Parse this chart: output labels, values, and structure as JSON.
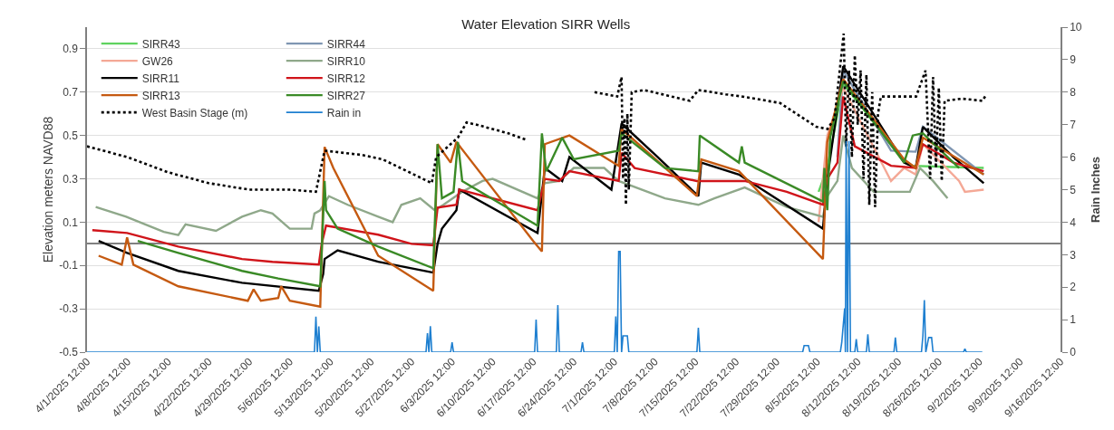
{
  "chart_data": {
    "type": "line",
    "title": "Water Elevation SIRR Wells",
    "ylabel": "Elevation meters NAVD88",
    "y2label": "Rain Inches",
    "xlim": [
      "2025-04-01T12:00",
      "2025-09-16T12:00"
    ],
    "xticks": [
      {
        "value": "2025-04-01T12:00",
        "label": "4/1/2025 12:00"
      },
      {
        "value": "2025-04-08T12:00",
        "label": "4/8/2025 12:00"
      },
      {
        "value": "2025-04-15T12:00",
        "label": "4/15/2025 12:00"
      },
      {
        "value": "2025-04-22T12:00",
        "label": "4/22/2025 12:00"
      },
      {
        "value": "2025-04-29T12:00",
        "label": "4/29/2025 12:00"
      },
      {
        "value": "2025-05-06T12:00",
        "label": "5/6/2025 12:00"
      },
      {
        "value": "2025-05-13T12:00",
        "label": "5/13/2025 12:00"
      },
      {
        "value": "2025-05-20T12:00",
        "label": "5/20/2025 12:00"
      },
      {
        "value": "2025-05-27T12:00",
        "label": "5/27/2025 12:00"
      },
      {
        "value": "2025-06-03T12:00",
        "label": "6/3/2025 12:00"
      },
      {
        "value": "2025-06-10T12:00",
        "label": "6/10/2025 12:00"
      },
      {
        "value": "2025-06-17T12:00",
        "label": "6/17/2025 12:00"
      },
      {
        "value": "2025-06-24T12:00",
        "label": "6/24/2025 12:00"
      },
      {
        "value": "2025-07-01T12:00",
        "label": "7/1/2025 12:00"
      },
      {
        "value": "2025-07-08T12:00",
        "label": "7/8/2025 12:00"
      },
      {
        "value": "2025-07-15T12:00",
        "label": "7/15/2025 12:00"
      },
      {
        "value": "2025-07-22T12:00",
        "label": "7/22/2025 12:00"
      },
      {
        "value": "2025-07-29T12:00",
        "label": "7/29/2025 12:00"
      },
      {
        "value": "2025-08-05T12:00",
        "label": "8/5/2025 12:00"
      },
      {
        "value": "2025-08-12T12:00",
        "label": "8/12/2025 12:00"
      },
      {
        "value": "2025-08-19T12:00",
        "label": "8/19/2025 12:00"
      },
      {
        "value": "2025-08-26T12:00",
        "label": "8/26/2025 12:00"
      },
      {
        "value": "2025-09-02T12:00",
        "label": "9/2/2025 12:00"
      },
      {
        "value": "2025-09-09T12:00",
        "label": "9/9/2025 12:00"
      },
      {
        "value": "2025-09-16T12:00",
        "label": "9/16/2025 12:00"
      }
    ],
    "ylim": [
      -0.5,
      1.0
    ],
    "yticks": [
      -0.5,
      -0.3,
      -0.1,
      0.1,
      0.3,
      0.5,
      0.7,
      0.9
    ],
    "y2lim": [
      0,
      10
    ],
    "y2ticks": [
      0,
      1,
      2,
      3,
      4,
      5,
      6,
      7,
      8,
      9,
      10
    ],
    "grid": "y",
    "legend": "top left",
    "series": [
      {
        "name": "SIRR43",
        "color": "#5fd35f",
        "x": [
          "2025-08-05T18:00",
          "2025-08-07T06:00",
          "2025-08-10T00:00",
          "2025-08-20T12:00",
          "2025-08-22T00:00",
          "2025-09-03T06:00"
        ],
        "values": [
          0.24,
          0.35,
          0.74,
          0.38,
          0.36,
          0.35
        ]
      },
      {
        "name": "SIRR44",
        "color": "#7f96b2",
        "x": [
          "2025-08-09T00:00",
          "2025-08-10T00:00",
          "2025-08-18T06:00",
          "2025-08-22T12:00",
          "2025-08-23T18:00",
          "2025-09-03T06:00"
        ],
        "values": [
          0.4,
          0.8,
          0.43,
          0.425,
          0.54,
          0.32
        ]
      },
      {
        "name": "GW26",
        "color": "#f4a896",
        "x": [
          "2025-08-05T18:00",
          "2025-08-07T06:00",
          "2025-08-10T00:00",
          "2025-08-18T06:00",
          "2025-08-20T12:00",
          "2025-08-22T12:00",
          "2025-08-23T18:00",
          "2025-08-30T00:00",
          "2025-08-31T00:00",
          "2025-09-03T06:00"
        ],
        "values": [
          0.1,
          0.5,
          0.72,
          0.29,
          0.35,
          0.32,
          0.46,
          0.29,
          0.24,
          0.25
        ]
      },
      {
        "name": "SIRR10",
        "color": "#8fa88a",
        "x": [
          "2025-04-03T00:00",
          "2025-04-08T06:00",
          "2025-04-14T18:00",
          "2025-04-17T06:00",
          "2025-04-18T12:00",
          "2025-04-23T18:00",
          "2025-04-28T06:00",
          "2025-05-01T12:00",
          "2025-05-03T12:00",
          "2025-05-06T12:00",
          "2025-05-10T06:00",
          "2025-05-10T18:00",
          "2025-05-11T18:00",
          "2025-05-13T06:00",
          "2025-05-16T12:00",
          "2025-05-21T18:00",
          "2025-05-24T06:00",
          "2025-05-25T18:00",
          "2025-05-29T00:00",
          "2025-05-31T12:00",
          "2025-06-02T00:00",
          "2025-06-05T06:00",
          "2025-06-08T18:00",
          "2025-06-10T12:00",
          "2025-06-18T06:00",
          "2025-06-19T12:00",
          "2025-06-22T00:00",
          "2025-06-24T12:00",
          "2025-06-29T18:00",
          "2025-07-02T06:00",
          "2025-07-10T06:00",
          "2025-07-16T00:00",
          "2025-07-18T18:00",
          "2025-07-24T00:00",
          "2025-07-31T06:00",
          "2025-08-06T12:00",
          "2025-08-07T06:00",
          "2025-08-09T00:00",
          "2025-08-10T00:00",
          "2025-08-11T12:00",
          "2025-08-15T06:00",
          "2025-08-21T12:00",
          "2025-08-23T06:00",
          "2025-08-25T12:00",
          "2025-08-28T00:00"
        ],
        "values": [
          0.17,
          0.125,
          0.055,
          0.04,
          0.09,
          0.06,
          0.125,
          0.155,
          0.14,
          0.07,
          0.07,
          0.14,
          0.155,
          0.22,
          0.18,
          0.125,
          0.1,
          0.18,
          0.21,
          0.155,
          0.18,
          0.24,
          0.29,
          0.3,
          0.21,
          0.28,
          0.29,
          0.35,
          0.35,
          0.29,
          0.21,
          0.18,
          0.21,
          0.26,
          0.17,
          0.125,
          0.22,
          0.29,
          0.5,
          0.35,
          0.24,
          0.24,
          0.35,
          0.29,
          0.21
        ]
      },
      {
        "name": "SIRR11",
        "color": "#000000",
        "x": [
          "2025-04-03T12:00",
          "2025-04-08T10:00",
          "2025-04-17T06:00",
          "2025-04-28T06:00",
          "2025-05-11T12:00",
          "2025-05-12T06:00",
          "2025-05-12T12:00",
          "2025-05-14T18:00",
          "2025-05-21T18:00",
          "2025-05-31T06:00",
          "2025-06-01T00:00",
          "2025-06-01T18:00",
          "2025-06-04T06:00",
          "2025-06-04T18:00",
          "2025-06-18T06:00",
          "2025-06-19T12:00",
          "2025-06-22T12:00",
          "2025-06-23T18:00",
          "2025-07-01T00:00",
          "2025-07-02T18:00",
          "2025-07-09T00:00",
          "2025-07-16T00:00",
          "2025-07-16T12:00",
          "2025-07-23T00:00",
          "2025-08-06T12:00",
          "2025-08-07T06:00",
          "2025-08-10T00:00",
          "2025-08-20T12:00",
          "2025-08-22T12:00",
          "2025-08-23T18:00",
          "2025-08-29T00:00",
          "2025-09-03T06:00"
        ],
        "values": [
          0.013,
          -0.042,
          -0.125,
          -0.18,
          -0.217,
          -0.14,
          -0.07,
          -0.03,
          -0.083,
          -0.133,
          0.0,
          0.07,
          0.155,
          0.25,
          0.05,
          0.35,
          0.29,
          0.4,
          0.25,
          0.555,
          0.4,
          0.22,
          0.375,
          0.32,
          0.07,
          0.3,
          0.82,
          0.375,
          0.35,
          0.54,
          0.4,
          0.28
        ]
      },
      {
        "name": "SIRR12",
        "color": "#d0141a",
        "x": [
          "2025-04-02T10:00",
          "2025-04-08T10:00",
          "2025-04-17T06:00",
          "2025-04-28T06:00",
          "2025-05-03T12:00",
          "2025-05-11T12:00",
          "2025-05-12T00:00",
          "2025-05-12T18:00",
          "2025-05-21T18:00",
          "2025-05-27T12:00",
          "2025-05-31T06:00",
          "2025-06-01T00:00",
          "2025-06-04T06:00",
          "2025-06-04T18:00",
          "2025-06-18T06:00",
          "2025-06-19T12:00",
          "2025-06-22T00:00",
          "2025-06-23T18:00",
          "2025-07-02T06:00",
          "2025-07-02T18:00",
          "2025-07-05T00:00",
          "2025-07-15T18:00",
          "2025-07-24T00:00",
          "2025-07-31T06:00",
          "2025-08-06T12:00",
          "2025-08-07T06:00",
          "2025-08-09T00:00",
          "2025-08-10T00:00",
          "2025-08-12T00:00",
          "2025-08-18T06:00",
          "2025-08-22T12:00",
          "2025-08-23T18:00",
          "2025-08-29T00:00",
          "2025-09-03T06:00"
        ],
        "values": [
          0.063,
          0.05,
          -0.013,
          -0.07,
          -0.083,
          -0.096,
          0.0,
          0.084,
          0.042,
          0.0,
          -0.007,
          0.167,
          0.18,
          0.25,
          0.155,
          0.3,
          0.29,
          0.335,
          0.29,
          0.42,
          0.35,
          0.29,
          0.29,
          0.24,
          0.18,
          0.3,
          0.375,
          0.68,
          0.45,
          0.36,
          0.35,
          0.46,
          0.375,
          0.335
        ]
      },
      {
        "name": "SIRR13",
        "color": "#c55a11",
        "x": [
          "2025-04-03T12:00",
          "2025-04-07T12:00",
          "2025-04-08T10:00",
          "2025-04-09T12:00",
          "2025-04-17T06:00",
          "2025-04-29T06:00",
          "2025-04-30T06:00",
          "2025-05-01T12:00",
          "2025-05-04T12:00",
          "2025-05-05T00:00",
          "2025-05-06T12:00",
          "2025-05-11T18:00",
          "2025-05-12T12:00",
          "2025-05-14T00:00",
          "2025-05-21T18:00",
          "2025-05-31T06:00",
          "2025-06-01T00:00",
          "2025-06-03T06:00",
          "2025-06-04T06:00",
          "2025-06-17T12:00",
          "2025-06-19T00:00",
          "2025-06-19T12:00",
          "2025-06-23T18:00",
          "2025-07-02T06:00",
          "2025-07-02T18:00",
          "2025-07-15T18:00",
          "2025-07-16T12:00",
          "2025-07-23T00:00",
          "2025-08-06T12:00",
          "2025-08-07T06:00",
          "2025-08-10T00:00",
          "2025-08-20T12:00",
          "2025-08-22T12:00",
          "2025-08-23T18:00",
          "2025-09-03T06:00"
        ],
        "values": [
          -0.055,
          -0.096,
          0.03,
          -0.096,
          -0.196,
          -0.263,
          -0.21,
          -0.263,
          -0.25,
          -0.196,
          -0.263,
          -0.29,
          0.447,
          0.35,
          -0.055,
          -0.217,
          0.46,
          0.375,
          0.47,
          0.013,
          -0.035,
          0.46,
          0.5,
          0.36,
          0.53,
          0.22,
          0.39,
          0.335,
          -0.07,
          0.47,
          0.76,
          0.39,
          0.35,
          0.49,
          0.32
        ]
      },
      {
        "name": "SIRR27",
        "color": "#3a8a26",
        "x": [
          "2025-04-10T06:00",
          "2025-04-17T06:00",
          "2025-04-28T06:00",
          "2025-05-04T12:00",
          "2025-05-11T18:00",
          "2025-05-12T12:00",
          "2025-05-12T18:00",
          "2025-05-14T18:00",
          "2025-05-21T18:00",
          "2025-05-31T06:00",
          "2025-06-01T00:00",
          "2025-06-01T18:00",
          "2025-06-03T18:00",
          "2025-06-04T12:00",
          "2025-06-05T06:00",
          "2025-06-18T06:00",
          "2025-06-19T00:00",
          "2025-06-19T18:00",
          "2025-06-22T12:00",
          "2025-06-24T12:00",
          "2025-07-02T06:00",
          "2025-07-02T18:00",
          "2025-07-10T06:00",
          "2025-07-16T00:00",
          "2025-07-16T06:00",
          "2025-07-23T00:00",
          "2025-07-23T12:00",
          "2025-07-24T00:00",
          "2025-08-06T12:00",
          "2025-08-06T18:00",
          "2025-08-07T06:00",
          "2025-08-07T18:00",
          "2025-08-10T00:00",
          "2025-08-20T12:00",
          "2025-08-22T00:00",
          "2025-08-23T18:00",
          "2025-08-30T00:00"
        ],
        "values": [
          0.013,
          -0.042,
          -0.125,
          -0.16,
          -0.196,
          0.29,
          0.155,
          0.07,
          -0.013,
          -0.113,
          0.46,
          0.21,
          0.24,
          0.47,
          0.29,
          0.084,
          0.51,
          0.335,
          0.49,
          0.39,
          0.43,
          0.51,
          0.35,
          0.335,
          0.5,
          0.375,
          0.45,
          0.375,
          0.195,
          0.35,
          0.155,
          0.49,
          0.75,
          0.375,
          0.5,
          0.51,
          0.35
        ]
      },
      {
        "name": "West Basin Stage (m)",
        "color": "#000000",
        "line_style": "dotted",
        "x": [
          "2025-04-01T12:00",
          "2025-04-08T12:00",
          "2025-04-15T12:00",
          "2025-04-22T12:00",
          "2025-04-29T12:00",
          "2025-05-06T14:00",
          "2025-05-11T00:00",
          "2025-05-12T12:00",
          "2025-05-19T00:00",
          "2025-05-22T12:00",
          "2025-05-31T00:00",
          "2025-05-31T18:00",
          "2025-06-04T12:00",
          "2025-06-06T00:00",
          "2025-06-07T17:00",
          "2025-06-13T05:00",
          "2025-06-16T07:00",
          "2025-06-22T00:00",
          "2025-06-28T02:00",
          "2025-07-02T00:00",
          "2025-07-02T18:00",
          "2025-07-03T00:00",
          "2025-07-03T06:00",
          "2025-07-03T12:00",
          "2025-07-03T18:00",
          "2025-07-04T00:00",
          "2025-07-04T12:00",
          "2025-07-06T15:00",
          "2025-07-14T12:00",
          "2025-07-16T00:00",
          "2025-07-20T17:00",
          "2025-07-23T12:00",
          "2025-07-30T02:00",
          "2025-08-05T09:00",
          "2025-08-07T07:00",
          "2025-08-08T12:00",
          "2025-08-10T02:00",
          "2025-08-10T12:00",
          "2025-08-11T00:00",
          "2025-08-11T12:00",
          "2025-08-12T00:00",
          "2025-08-12T12:00",
          "2025-08-13T00:00",
          "2025-08-13T12:00",
          "2025-08-14T00:00",
          "2025-08-14T12:00",
          "2025-08-15T00:00",
          "2025-08-15T12:00",
          "2025-08-16T00:00",
          "2025-08-16T12:00",
          "2025-08-22T14:00",
          "2025-08-24T05:00",
          "2025-08-25T00:00",
          "2025-08-25T12:00",
          "2025-08-26T00:00",
          "2025-08-26T12:00",
          "2025-08-27T00:00",
          "2025-08-27T12:00",
          "2025-08-30T12:00",
          "2025-09-03T00:00",
          "2025-09-03T12:00"
        ],
        "values": [
          0.45,
          0.4,
          0.33,
          0.28,
          0.25,
          0.25,
          0.24,
          0.43,
          0.41,
          0.39,
          0.28,
          0.4,
          0.49,
          0.56,
          0.55,
          0.51,
          0.48,
          null,
          0.7,
          0.68,
          0.77,
          0.3,
          0.58,
          0.18,
          0.6,
          0.25,
          0.7,
          0.71,
          0.66,
          0.71,
          0.69,
          0.68,
          0.65,
          0.54,
          0.53,
          0.58,
          0.97,
          0.45,
          0.8,
          0.4,
          0.87,
          0.55,
          0.8,
          0.3,
          0.78,
          0.18,
          0.7,
          0.17,
          0.6,
          0.68,
          0.68,
          0.8,
          0.3,
          0.77,
          0.35,
          0.72,
          0.29,
          0.66,
          0.67,
          0.66,
          0.68
        ]
      },
      {
        "name": "Rain in",
        "color": "#1e7fd0",
        "axis": "y2",
        "x": [
          "2025-04-01T12:00",
          "2025-05-10T18:00",
          "2025-05-11T00:00",
          "2025-05-11T06:00",
          "2025-05-11T12:00",
          "2025-05-11T18:00",
          "2025-05-30T00:00",
          "2025-05-30T06:00",
          "2025-05-30T12:00",
          "2025-05-30T18:00",
          "2025-05-31T00:00",
          "2025-06-03T06:00",
          "2025-06-03T12:00",
          "2025-06-03T18:00",
          "2025-06-17T18:00",
          "2025-06-18T00:00",
          "2025-06-18T06:00",
          "2025-06-21T12:00",
          "2025-06-21T18:00",
          "2025-06-22T00:00",
          "2025-06-25T18:00",
          "2025-06-26T00:00",
          "2025-06-26T06:00",
          "2025-07-01T12:00",
          "2025-07-01T18:00",
          "2025-07-02T00:00",
          "2025-07-02T06:00",
          "2025-07-02T12:00",
          "2025-07-02T18:00",
          "2025-07-03T00:00",
          "2025-07-03T18:00",
          "2025-07-04T00:00",
          "2025-07-15T18:00",
          "2025-07-16T00:00",
          "2025-07-16T06:00",
          "2025-08-03T00:00",
          "2025-08-03T06:00",
          "2025-08-04T00:00",
          "2025-08-04T06:00",
          "2025-08-09T12:00",
          "2025-08-09T18:00",
          "2025-08-10T06:00",
          "2025-08-10T09:00",
          "2025-08-10T12:00",
          "2025-08-10T18:00",
          "2025-08-11T00:00",
          "2025-08-11T06:00",
          "2025-08-12T00:00",
          "2025-08-12T06:00",
          "2025-08-12T12:00",
          "2025-08-14T00:00",
          "2025-08-14T06:00",
          "2025-08-14T12:00",
          "2025-08-18T18:00",
          "2025-08-19T00:00",
          "2025-08-19T06:00",
          "2025-08-23T12:00",
          "2025-08-23T18:00",
          "2025-08-24T00:00",
          "2025-08-24T06:00",
          "2025-08-24T18:00",
          "2025-08-25T06:00",
          "2025-08-25T12:00",
          "2025-08-30T18:00",
          "2025-08-31T00:00",
          "2025-08-31T06:00",
          "2025-09-03T00:00"
        ],
        "values": [
          0,
          0,
          1.09,
          0,
          0.79,
          0,
          0,
          0.58,
          0,
          0.8,
          0,
          0,
          0.3,
          0,
          0,
          1.0,
          0,
          0,
          1.45,
          0,
          0,
          0.3,
          0,
          0,
          1.1,
          0,
          3.1,
          3.1,
          0,
          0.5,
          0.5,
          0,
          0,
          0.75,
          0,
          0,
          0.2,
          0.2,
          0,
          0,
          0.3,
          1.35,
          0,
          6.5,
          0,
          6.5,
          0,
          0,
          0.4,
          0,
          0,
          0.55,
          0,
          0,
          0.45,
          0,
          0,
          0.5,
          1.6,
          0,
          0.45,
          0.45,
          0,
          0,
          0.1,
          0,
          0
        ]
      }
    ]
  }
}
